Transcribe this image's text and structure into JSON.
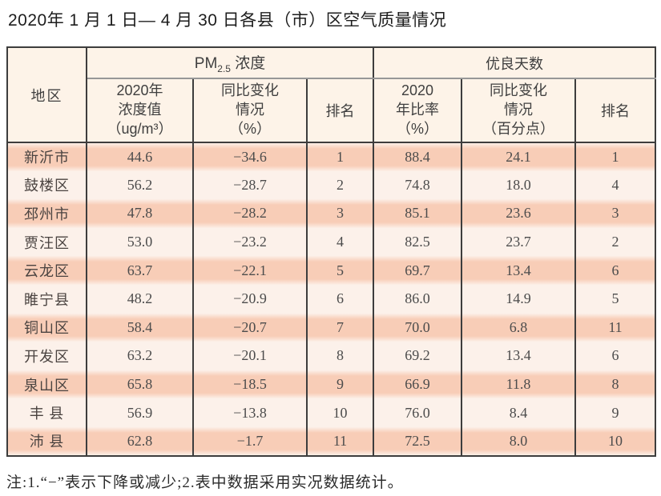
{
  "page": {
    "title": "2020年 1 月 1 日— 4 月 30 日各县（市）区空气质量情况",
    "note": "注:1.“−”表示下降或减少;2.表中数据采用实况数据统计。"
  },
  "table": {
    "headers": {
      "region": "地区",
      "pm_group": {
        "prefix": "PM",
        "subscript": "2.5",
        "suffix": " 浓度"
      },
      "days_group": "优良天数",
      "pm_value": "2020年\n浓度值\n（ug/m³）",
      "pm_change": "同比变化\n情况\n（%）",
      "pm_rank": "排名",
      "days_ratio": "2020\n年比率\n（%）",
      "days_change": "同比变化\n情况\n（百分点）",
      "days_rank": "排名"
    },
    "rows": [
      {
        "region": "新沂市",
        "pm_value": "44.6",
        "pm_change": "−34.6",
        "pm_rank": "1",
        "days_ratio": "88.4",
        "days_change": "24.1",
        "days_rank": "1"
      },
      {
        "region": "鼓楼区",
        "pm_value": "56.2",
        "pm_change": "−28.7",
        "pm_rank": "2",
        "days_ratio": "74.8",
        "days_change": "18.0",
        "days_rank": "4"
      },
      {
        "region": "邳州市",
        "pm_value": "47.8",
        "pm_change": "−28.2",
        "pm_rank": "3",
        "days_ratio": "85.1",
        "days_change": "23.6",
        "days_rank": "3"
      },
      {
        "region": "贾汪区",
        "pm_value": "53.0",
        "pm_change": "−23.2",
        "pm_rank": "4",
        "days_ratio": "82.5",
        "days_change": "23.7",
        "days_rank": "2"
      },
      {
        "region": "云龙区",
        "pm_value": "63.7",
        "pm_change": "−22.1",
        "pm_rank": "5",
        "days_ratio": "69.7",
        "days_change": "13.4",
        "days_rank": "6"
      },
      {
        "region": "睢宁县",
        "pm_value": "48.2",
        "pm_change": "−20.9",
        "pm_rank": "6",
        "days_ratio": "86.0",
        "days_change": "14.9",
        "days_rank": "5"
      },
      {
        "region": "铜山区",
        "pm_value": "58.4",
        "pm_change": "−20.7",
        "pm_rank": "7",
        "days_ratio": "70.0",
        "days_change": "6.8",
        "days_rank": "11"
      },
      {
        "region": "开发区",
        "pm_value": "63.2",
        "pm_change": "−20.1",
        "pm_rank": "8",
        "days_ratio": "69.2",
        "days_change": "13.4",
        "days_rank": "6"
      },
      {
        "region": "泉山区",
        "pm_value": "65.8",
        "pm_change": "−18.5",
        "pm_rank": "9",
        "days_ratio": "66.9",
        "days_change": "11.8",
        "days_rank": "8"
      },
      {
        "region": "丰 县",
        "pm_value": "56.9",
        "pm_change": "−13.8",
        "pm_rank": "10",
        "days_ratio": "76.0",
        "days_change": "8.4",
        "days_rank": "9"
      },
      {
        "region": "沛 县",
        "pm_value": "62.8",
        "pm_change": "−1.7",
        "pm_rank": "11",
        "days_ratio": "72.5",
        "days_change": "8.0",
        "days_rank": "10"
      }
    ]
  },
  "colors": {
    "stripe": "#f8cdb7",
    "row_light": "#fcf1ea",
    "header_bg": "#fdf3e8",
    "border": "#3d3d3d"
  }
}
